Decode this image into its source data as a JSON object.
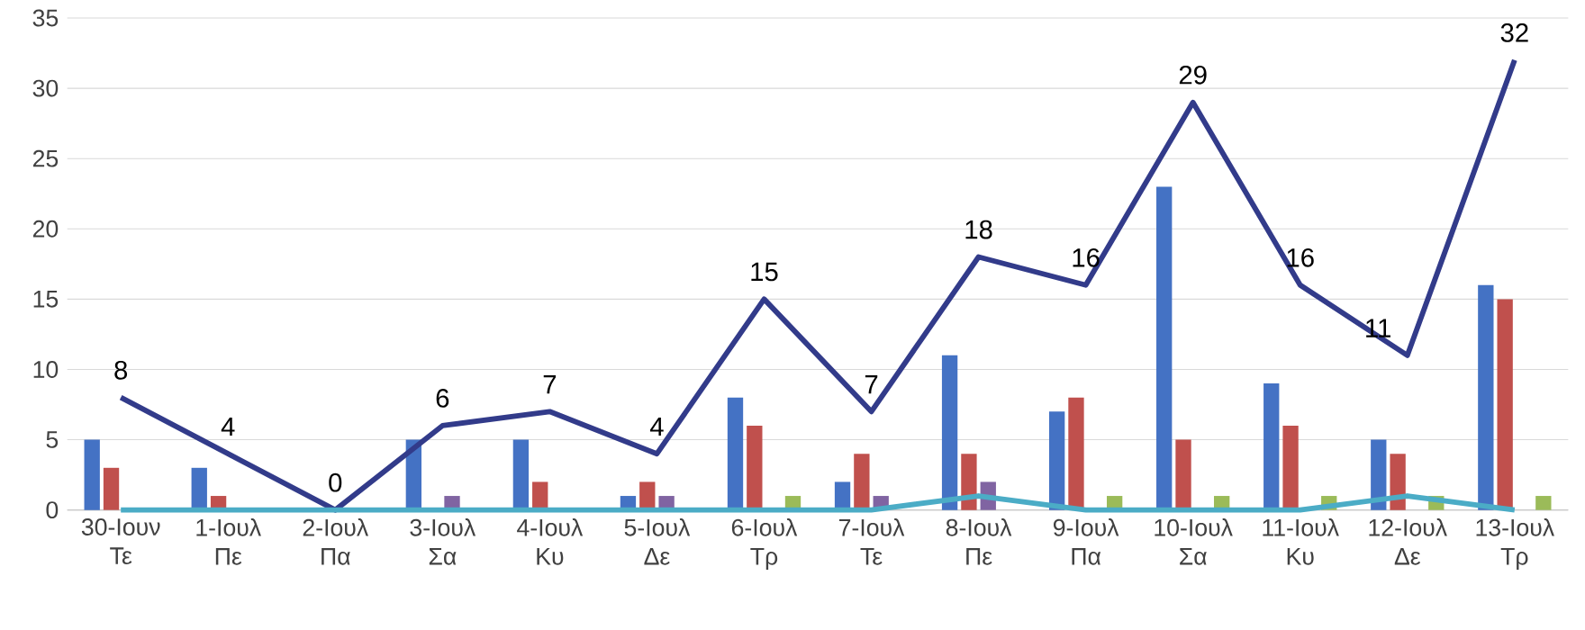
{
  "chart_data": {
    "type": "bar",
    "categories": [
      "30-Ιουν Τε",
      "1-Ιουλ Πε",
      "2-Ιουλ Πα",
      "3-Ιουλ Σα",
      "4-Ιουλ Κυ",
      "5-Ιουλ Δε",
      "6-Ιουλ Τρ",
      "7-Ιουλ Τε",
      "8-Ιουλ Πε",
      "9-Ιουλ Πα",
      "10-Ιουλ Σα",
      "11-Ιουλ Κυ",
      "12-Ιουλ Δε",
      "13-Ιουλ Τρ"
    ],
    "series": [
      {
        "color": "#4472c4",
        "values": [
          5,
          3,
          0,
          5,
          5,
          1,
          8,
          2,
          11,
          7,
          23,
          9,
          5,
          16
        ]
      },
      {
        "color": "#c0504d",
        "values": [
          3,
          1,
          0,
          0,
          2,
          2,
          6,
          4,
          4,
          8,
          5,
          6,
          4,
          15
        ]
      },
      {
        "color": "#8064a2",
        "values": [
          0,
          0,
          0,
          1,
          0,
          1,
          0,
          1,
          2,
          0,
          0,
          0,
          0,
          0
        ]
      },
      {
        "color": "#9bbb59",
        "values": [
          0,
          0,
          0,
          0,
          0,
          0,
          1,
          0,
          0,
          1,
          1,
          1,
          1,
          1
        ]
      },
      {
        "type": "line",
        "color": "#323b8a",
        "values": [
          8,
          4,
          0,
          6,
          7,
          4,
          15,
          7,
          18,
          16,
          29,
          16,
          11,
          32
        ],
        "value_labels": [
          "8",
          "4",
          "0",
          "6",
          "7",
          "4",
          "15",
          "7",
          "18",
          "16",
          "29",
          "16",
          "11",
          "32"
        ]
      },
      {
        "type": "line",
        "color": "#4bacc6",
        "values": [
          0,
          0,
          0,
          0,
          0,
          0,
          0,
          0,
          1,
          0,
          0,
          0,
          1,
          0
        ]
      }
    ],
    "ylim": [
      0,
      35
    ],
    "yticks": [
      0,
      5,
      10,
      15,
      20,
      25,
      30,
      35
    ],
    "grid": "y",
    "legend": false,
    "marker": "none"
  }
}
